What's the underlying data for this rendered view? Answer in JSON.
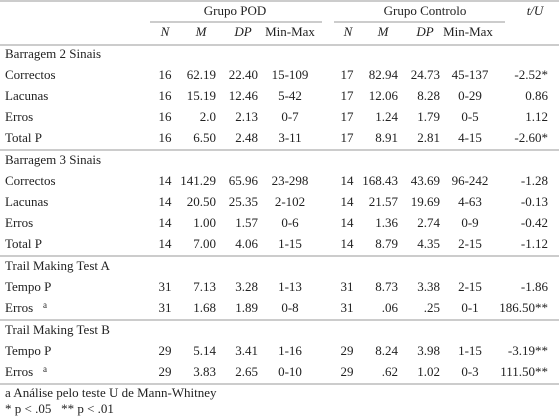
{
  "header": {
    "group1": "Grupo POD",
    "group2": "Grupo Controlo",
    "stat": "t/U",
    "columns": [
      "N",
      "M",
      "DP",
      "Min-Max",
      "N",
      "M",
      "DP",
      "Min-Max"
    ]
  },
  "sections": [
    {
      "title": "Barragem 2 Sinais",
      "rows": [
        {
          "label": "Correctos",
          "cells": [
            "16",
            "62.19",
            "22.40",
            "15-109",
            "17",
            "82.94",
            "24.73",
            "45-137",
            "-2.52*"
          ]
        },
        {
          "label": "Lacunas",
          "cells": [
            "16",
            "15.19",
            "12.46",
            "5-42",
            "17",
            "12.06",
            "8.28",
            "0-29",
            "0.86"
          ]
        },
        {
          "label": "Erros",
          "cells": [
            "16",
            "2.0",
            "2.13",
            "0-7",
            "17",
            "1.24",
            "1.79",
            "0-5",
            "1.12"
          ]
        },
        {
          "label": "Total P",
          "cells": [
            "16",
            "6.50",
            "2.48",
            "3-11",
            "17",
            "8.91",
            "2.81",
            "4-15",
            "-2.60*"
          ]
        }
      ]
    },
    {
      "title": "Barragem 3 Sinais",
      "rows": [
        {
          "label": "Correctos",
          "cells": [
            "14",
            "141.29",
            "65.96",
            "23-298",
            "14",
            "168.43",
            "43.69",
            "96-242",
            "-1.28"
          ]
        },
        {
          "label": "Lacunas",
          "cells": [
            "14",
            "20.50",
            "25.35",
            "2-102",
            "14",
            "21.57",
            "19.69",
            "4-63",
            "-0.13"
          ]
        },
        {
          "label": "Erros",
          "cells": [
            "14",
            "1.00",
            "1.57",
            "0-6",
            "14",
            "1.36",
            "2.74",
            "0-9",
            "-0.42"
          ]
        },
        {
          "label": "Total P",
          "cells": [
            "14",
            "7.00",
            "4.06",
            "1-15",
            "14",
            "8.79",
            "4.35",
            "2-15",
            "-1.12"
          ]
        }
      ]
    },
    {
      "title": "Trail Making Test A",
      "rows": [
        {
          "label": "Tempo P",
          "cells": [
            "31",
            "7.13",
            "3.28",
            "1-13",
            "31",
            "8.73",
            "3.38",
            "2-15",
            "-1.86"
          ]
        },
        {
          "label": "Erros",
          "mark": "a",
          "cells": [
            "31",
            "1.68",
            "1.89",
            "0-8",
            "31",
            ".06",
            ".25",
            "0-1",
            "186.50**"
          ]
        }
      ]
    },
    {
      "title": "Trail Making Test B",
      "rows": [
        {
          "label": "Tempo P",
          "cells": [
            "29",
            "5.14",
            "3.41",
            "1-16",
            "29",
            "8.24",
            "3.98",
            "1-15",
            "-3.19**"
          ]
        },
        {
          "label": "Erros",
          "mark": "a",
          "cells": [
            "29",
            "3.83",
            "2.65",
            "0-10",
            "29",
            ".62",
            "1.02",
            "0-3",
            "111.50**"
          ]
        }
      ]
    }
  ],
  "footnotes": [
    "a Análise pelo teste U de Mann-Whitney",
    "* p < .05   ** p < .01"
  ]
}
